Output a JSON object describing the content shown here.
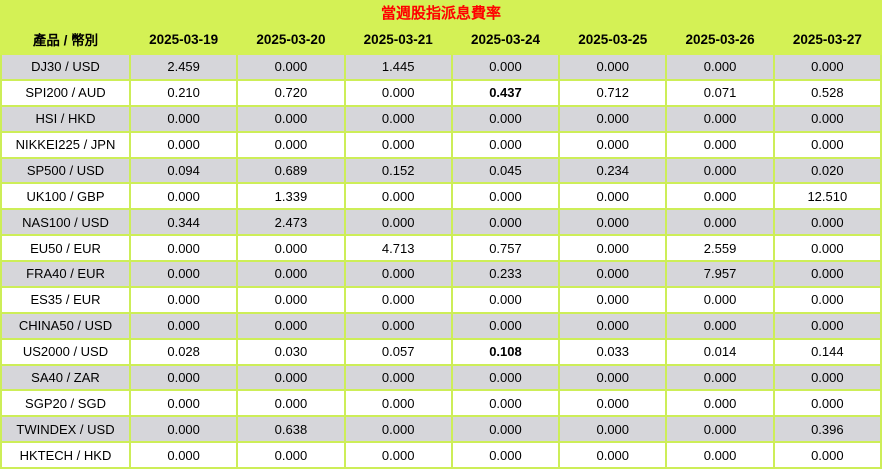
{
  "colors": {
    "table_background_green": "#d4f155",
    "grid_border_green": "#cdee58",
    "striped_row_gray": "#d6d6da",
    "striped_row_white": "#ffffff",
    "title_red": "#ff0000",
    "text_black": "#000000"
  },
  "chart_data": {
    "type": "table",
    "title": "當週股指派息費率",
    "corner_header": "產品 / 幣別",
    "date_columns": [
      "2025-03-19",
      "2025-03-20",
      "2025-03-21",
      "2025-03-24",
      "2025-03-25",
      "2025-03-26",
      "2025-03-27"
    ],
    "rows": [
      {
        "product": "DJ30 / USD",
        "values": [
          "2.459",
          "0.000",
          "1.445",
          "0.000",
          "0.000",
          "0.000",
          "0.000"
        ],
        "bold_values": []
      },
      {
        "product": "SPI200 / AUD",
        "values": [
          "0.210",
          "0.720",
          "0.000",
          "0.437",
          "0.712",
          "0.071",
          "0.528"
        ],
        "bold_values": [
          3
        ]
      },
      {
        "product": "HSI / HKD",
        "values": [
          "0.000",
          "0.000",
          "0.000",
          "0.000",
          "0.000",
          "0.000",
          "0.000"
        ],
        "bold_values": []
      },
      {
        "product": "NIKKEI225 / JPN",
        "values": [
          "0.000",
          "0.000",
          "0.000",
          "0.000",
          "0.000",
          "0.000",
          "0.000"
        ],
        "bold_values": []
      },
      {
        "product": "SP500 / USD",
        "values": [
          "0.094",
          "0.689",
          "0.152",
          "0.045",
          "0.234",
          "0.000",
          "0.020"
        ],
        "bold_values": []
      },
      {
        "product": "UK100 / GBP",
        "values": [
          "0.000",
          "1.339",
          "0.000",
          "0.000",
          "0.000",
          "0.000",
          "12.510"
        ],
        "bold_values": []
      },
      {
        "product": "NAS100 / USD",
        "values": [
          "0.344",
          "2.473",
          "0.000",
          "0.000",
          "0.000",
          "0.000",
          "0.000"
        ],
        "bold_values": []
      },
      {
        "product": "EU50 / EUR",
        "values": [
          "0.000",
          "0.000",
          "4.713",
          "0.757",
          "0.000",
          "2.559",
          "0.000"
        ],
        "bold_values": []
      },
      {
        "product": "FRA40 / EUR",
        "values": [
          "0.000",
          "0.000",
          "0.000",
          "0.233",
          "0.000",
          "7.957",
          "0.000"
        ],
        "bold_values": []
      },
      {
        "product": "ES35 / EUR",
        "values": [
          "0.000",
          "0.000",
          "0.000",
          "0.000",
          "0.000",
          "0.000",
          "0.000"
        ],
        "bold_values": []
      },
      {
        "product": "CHINA50 / USD",
        "values": [
          "0.000",
          "0.000",
          "0.000",
          "0.000",
          "0.000",
          "0.000",
          "0.000"
        ],
        "bold_values": []
      },
      {
        "product": "US2000 / USD",
        "values": [
          "0.028",
          "0.030",
          "0.057",
          "0.108",
          "0.033",
          "0.014",
          "0.144"
        ],
        "bold_values": [
          3
        ]
      },
      {
        "product": "SA40 / ZAR",
        "values": [
          "0.000",
          "0.000",
          "0.000",
          "0.000",
          "0.000",
          "0.000",
          "0.000"
        ],
        "bold_values": []
      },
      {
        "product": "SGP20 / SGD",
        "values": [
          "0.000",
          "0.000",
          "0.000",
          "0.000",
          "0.000",
          "0.000",
          "0.000"
        ],
        "bold_values": []
      },
      {
        "product": "TWINDEX / USD",
        "values": [
          "0.000",
          "0.638",
          "0.000",
          "0.000",
          "0.000",
          "0.000",
          "0.396"
        ],
        "bold_values": []
      },
      {
        "product": "HKTECH / HKD",
        "values": [
          "0.000",
          "0.000",
          "0.000",
          "0.000",
          "0.000",
          "0.000",
          "0.000"
        ],
        "bold_values": []
      }
    ]
  }
}
